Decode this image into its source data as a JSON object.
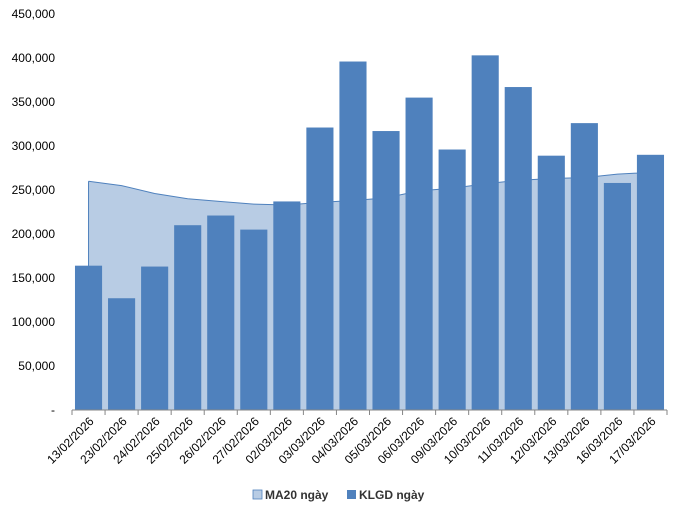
{
  "chart_data": {
    "type": "bar",
    "categories": [
      "13/02/2026",
      "23/02/2026",
      "24/02/2026",
      "25/02/2026",
      "26/02/2026",
      "27/02/2026",
      "02/03/2026",
      "03/03/2026",
      "04/03/2026",
      "05/03/2026",
      "06/03/2026",
      "09/03/2026",
      "10/03/2026",
      "11/03/2026",
      "12/03/2026",
      "13/03/2026",
      "16/03/2026",
      "17/03/2026"
    ],
    "series": [
      {
        "name": "MA20 ngày",
        "type": "area",
        "color": "#b8cce4",
        "stroke": "#4f81bd",
        "values": [
          260000,
          255000,
          246000,
          240000,
          237000,
          234000,
          233000,
          236000,
          238000,
          241000,
          249000,
          252000,
          257000,
          261000,
          263000,
          264000,
          268000,
          270000
        ]
      },
      {
        "name": "KLGD ngày",
        "type": "bar",
        "color": "#4f81bd",
        "values": [
          164000,
          127000,
          163000,
          210000,
          221000,
          205000,
          237000,
          321000,
          396000,
          317000,
          355000,
          296000,
          403000,
          367000,
          289000,
          326000,
          258000,
          290000
        ]
      }
    ],
    "y_ticks": [
      "-",
      "50,000",
      "100,000",
      "150,000",
      "200,000",
      "250,000",
      "300,000",
      "350,000",
      "400,000",
      "450,000"
    ],
    "ylim": [
      0,
      450000
    ],
    "y_step": 50000,
    "gridlines": false,
    "legend_position": "bottom"
  }
}
